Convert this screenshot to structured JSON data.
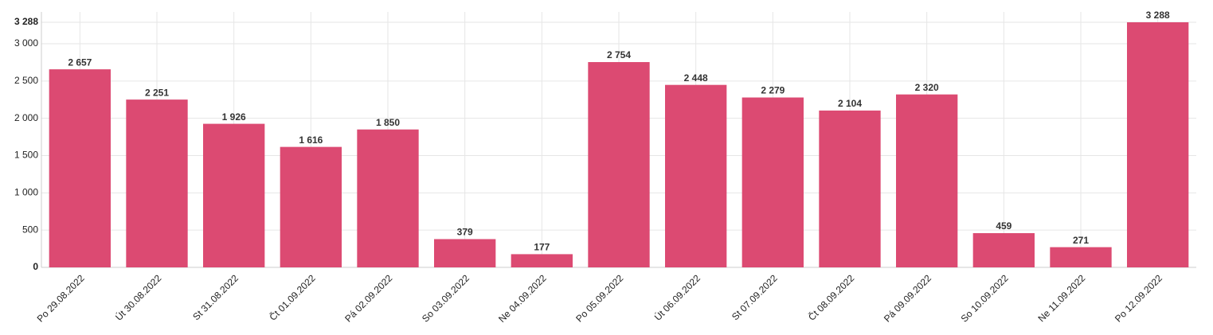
{
  "chart_data": {
    "type": "bar",
    "categories": [
      "Po 29.08.2022",
      "Út 30.08.2022",
      "St 31.08.2022",
      "Čt 01.09.2022",
      "Pá 02.09.2022",
      "So 03.09.2022",
      "Ne 04.09.2022",
      "Po 05.09.2022",
      "Út 06.09.2022",
      "St 07.09.2022",
      "Čt 08.09.2022",
      "Pá 09.09.2022",
      "So 10.09.2022",
      "Ne 11.09.2022",
      "Po 12.09.2022"
    ],
    "values": [
      2657,
      2251,
      1926,
      1616,
      1850,
      379,
      177,
      2754,
      2448,
      2279,
      2104,
      2320,
      459,
      271,
      3288
    ],
    "value_labels": [
      "2 657",
      "2 251",
      "1 926",
      "1 616",
      "1 850",
      "379",
      "177",
      "2 754",
      "2 448",
      "2 279",
      "2 104",
      "2 320",
      "459",
      "271",
      "3 288"
    ],
    "color": "#dc4a72",
    "ylim": [
      0,
      3288
    ],
    "yticks": [
      0,
      500,
      {
        "value": 1000,
        "label": "1 000"
      },
      {
        "value": 1500,
        "label": "1 500"
      },
      {
        "value": 2000,
        "label": "2 000"
      },
      {
        "value": 2500,
        "label": "2 500"
      },
      {
        "value": 3000,
        "label": "3 000"
      },
      {
        "value": 3288,
        "label": "3 288"
      }
    ],
    "grid": true
  }
}
